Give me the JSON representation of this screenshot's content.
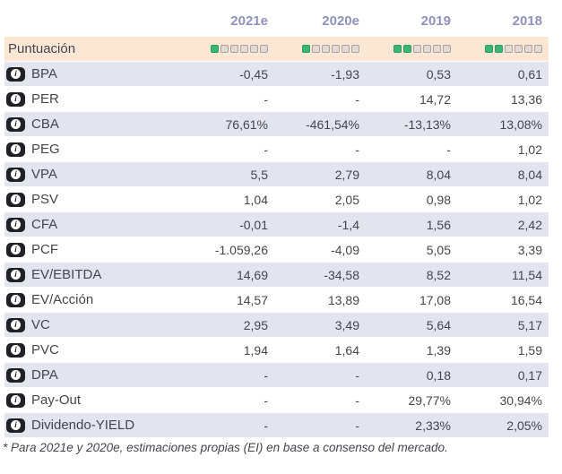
{
  "colors": {
    "score_filled": "#3cb474",
    "score_filled_border": "#2d9c61",
    "score_empty_fill": "#e3dbd3",
    "score_empty_border": "#a9a29c",
    "score_row_bg": "#fae8d4",
    "row_alt_bg": "#e4e4ee",
    "header_text": "#8f91bd",
    "body_text": "#45454f"
  },
  "icons": {
    "info_glyph": "i"
  },
  "table": {
    "columns": [
      "2021e",
      "2020e",
      "2019",
      "2018"
    ],
    "score_row": {
      "label": "Puntuación",
      "scores": [
        {
          "filled": 1,
          "total": 6
        },
        {
          "filled": 1,
          "total": 6
        },
        {
          "filled": 2,
          "total": 6
        },
        {
          "filled": 2,
          "total": 6
        }
      ]
    },
    "rows": [
      {
        "label": "BPA",
        "values": [
          "-0,45",
          "-1,93",
          "0,53",
          "0,61"
        ]
      },
      {
        "label": "PER",
        "values": [
          "-",
          "-",
          "14,72",
          "13,36"
        ]
      },
      {
        "label": "CBA",
        "values": [
          "76,61%",
          "-461,54%",
          "-13,13%",
          "13,08%"
        ]
      },
      {
        "label": "PEG",
        "values": [
          "-",
          "-",
          "-",
          "1,02"
        ]
      },
      {
        "label": "VPA",
        "values": [
          "5,5",
          "2,79",
          "8,04",
          "8,04"
        ]
      },
      {
        "label": "PSV",
        "values": [
          "1,04",
          "2,05",
          "0,98",
          "1,02"
        ]
      },
      {
        "label": "CFA",
        "values": [
          "-0,01",
          "-1,4",
          "1,56",
          "2,42"
        ]
      },
      {
        "label": "PCF",
        "values": [
          "-1.059,26",
          "-4,09",
          "5,05",
          "3,39"
        ]
      },
      {
        "label": "EV/EBITDA",
        "values": [
          "14,69",
          "-34,58",
          "8,52",
          "11,54"
        ]
      },
      {
        "label": "EV/Acción",
        "values": [
          "14,57",
          "13,89",
          "17,08",
          "16,54"
        ]
      },
      {
        "label": "VC",
        "values": [
          "2,95",
          "3,49",
          "5,64",
          "5,17"
        ]
      },
      {
        "label": "PVC",
        "values": [
          "1,94",
          "1,64",
          "1,39",
          "1,59"
        ]
      },
      {
        "label": "DPA",
        "values": [
          "-",
          "-",
          "0,18",
          "0,17"
        ]
      },
      {
        "label": "Pay-Out",
        "values": [
          "-",
          "-",
          "29,77%",
          "30,94%"
        ]
      },
      {
        "label": "Dividendo-YIELD",
        "values": [
          "-",
          "-",
          "2,33%",
          "2,05%"
        ]
      }
    ]
  },
  "footnote": "* Para 2021e y 2020e, estimaciones propias (EI) en base a consenso del mercado."
}
